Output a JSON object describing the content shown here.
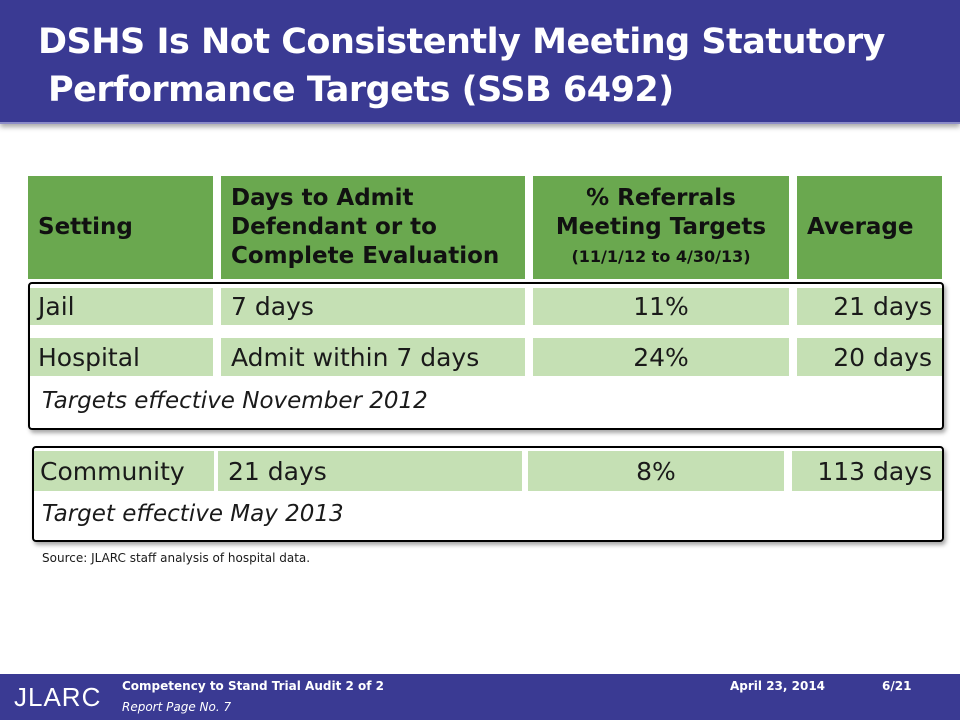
{
  "slide": {
    "title_line1": "DSHS Is Not Consistently Meeting Statutory",
    "title_line2": "Performance Targets  (SSB 6492)"
  },
  "table": {
    "headers": {
      "setting": "Setting",
      "days_line1": "Days to Admit",
      "days_line2": "Defendant or to",
      "days_line3": "Complete Evaluation",
      "pct_line1": "% Referrals",
      "pct_line2": "Meeting Targets",
      "pct_line3": "(11/1/12 to 4/30/13)",
      "average": "Average"
    },
    "rows": [
      {
        "setting": "Jail",
        "days": "7 days",
        "pct": "11%",
        "average": "21 days"
      },
      {
        "setting": "Hospital",
        "days": "Admit within 7 days",
        "pct": "24%",
        "average": "20 days"
      },
      {
        "setting": "Community",
        "days": "21 days",
        "pct": "8%",
        "average": "113 days"
      }
    ],
    "note_group1": "Targets effective November 2012",
    "note_group2": "Target effective May 2013"
  },
  "source": "Source: JLARC staff analysis of hospital data.",
  "footer": {
    "logo": "JLARC",
    "audit": "Competency to Stand Trial Audit 2 of 2",
    "report_page": "Report Page No. 7",
    "date": "April 23, 2014",
    "slide_number": "6/21"
  },
  "colors": {
    "title_bar": "#3a3a93",
    "header_green": "#6aa84f",
    "row_green": "#c5e0b4"
  }
}
